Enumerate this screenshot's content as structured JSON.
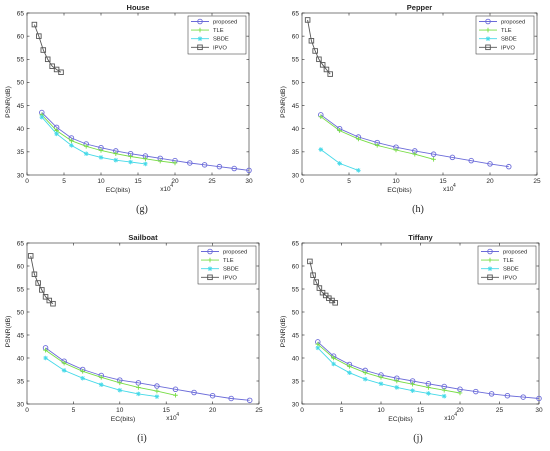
{
  "colors": {
    "proposed": "#6b6bd9",
    "TLE": "#77dd44",
    "SBDE": "#44d9e8",
    "IPVO": "#555555"
  },
  "chart_data": [
    {
      "type": "line",
      "title": "House",
      "caption": "(g)",
      "xlabel": "EC(bits)",
      "ylabel": "PSNR(dB)",
      "x_multiplier": "x10",
      "x_multiplier_exp": "4",
      "xlim": [
        0,
        30
      ],
      "ylim": [
        30,
        65
      ],
      "xticks": [
        0,
        5,
        10,
        15,
        20,
        25,
        30
      ],
      "yticks": [
        30,
        35,
        40,
        45,
        50,
        55,
        60,
        65
      ],
      "legend": "top-right",
      "series": [
        {
          "name": "proposed",
          "marker": "circle",
          "x": [
            2,
            4,
            6,
            8,
            10,
            12,
            14,
            16,
            18,
            20,
            22,
            24,
            26,
            28,
            30
          ],
          "y": [
            43.5,
            40.3,
            38.0,
            36.7,
            35.9,
            35.2,
            34.6,
            34.1,
            33.6,
            33.1,
            32.6,
            32.2,
            31.8,
            31.4,
            31.0
          ]
        },
        {
          "name": "TLE",
          "marker": "plus",
          "x": [
            2,
            4,
            6,
            8,
            10,
            12,
            14,
            16,
            18,
            20
          ],
          "y": [
            43.0,
            39.6,
            37.4,
            36.2,
            35.3,
            34.6,
            34.0,
            33.5,
            33.0,
            32.6
          ]
        },
        {
          "name": "SBDE",
          "marker": "asterisk",
          "x": [
            2,
            4,
            6,
            8,
            10,
            12,
            14,
            16
          ],
          "y": [
            42.5,
            38.9,
            36.4,
            34.6,
            33.8,
            33.2,
            32.8,
            32.4
          ]
        },
        {
          "name": "IPVO",
          "marker": "square",
          "x": [
            1.0,
            1.6,
            2.2,
            2.8,
            3.4,
            4.0,
            4.6
          ],
          "y": [
            62.5,
            60.0,
            57.0,
            55.0,
            53.5,
            52.8,
            52.2
          ]
        }
      ]
    },
    {
      "type": "line",
      "title": "Pepper",
      "caption": "(h)",
      "xlabel": "EC(bits)",
      "ylabel": "PSNR(dB)",
      "x_multiplier": "x10",
      "x_multiplier_exp": "4",
      "xlim": [
        0,
        25
      ],
      "ylim": [
        30,
        65
      ],
      "xticks": [
        0,
        5,
        10,
        15,
        20,
        25
      ],
      "yticks": [
        30,
        35,
        40,
        45,
        50,
        55,
        60,
        65
      ],
      "legend": "top-right",
      "series": [
        {
          "name": "proposed",
          "marker": "circle",
          "x": [
            2,
            4,
            6,
            8,
            10,
            12,
            14,
            16,
            18,
            20,
            22
          ],
          "y": [
            43.0,
            40.0,
            38.2,
            37.0,
            36.0,
            35.2,
            34.5,
            33.8,
            33.1,
            32.4,
            31.8
          ]
        },
        {
          "name": "TLE",
          "marker": "plus",
          "x": [
            2,
            4,
            6,
            8,
            10,
            12,
            14
          ],
          "y": [
            42.6,
            39.6,
            37.8,
            36.4,
            35.4,
            34.5,
            33.4
          ]
        },
        {
          "name": "SBDE",
          "marker": "asterisk",
          "x": [
            2,
            4,
            6
          ],
          "y": [
            35.5,
            32.5,
            31.0
          ]
        },
        {
          "name": "IPVO",
          "marker": "square",
          "x": [
            0.6,
            1.0,
            1.4,
            1.8,
            2.2,
            2.6,
            3.0
          ],
          "y": [
            63.5,
            59.0,
            56.8,
            55.0,
            53.8,
            52.8,
            51.8
          ]
        }
      ]
    },
    {
      "type": "line",
      "title": "Sailboat",
      "caption": "(i)",
      "xlabel": "EC(bits)",
      "ylabel": "PSNR(dB)",
      "x_multiplier": "x10",
      "x_multiplier_exp": "4",
      "xlim": [
        0,
        25
      ],
      "ylim": [
        30,
        65
      ],
      "xticks": [
        0,
        5,
        10,
        15,
        20,
        25
      ],
      "yticks": [
        30,
        35,
        40,
        45,
        50,
        55,
        60,
        65
      ],
      "legend": "top-right",
      "series": [
        {
          "name": "proposed",
          "marker": "circle",
          "x": [
            2,
            4,
            6,
            8,
            10,
            12,
            14,
            16,
            18,
            20,
            22,
            24
          ],
          "y": [
            42.2,
            39.3,
            37.5,
            36.2,
            35.2,
            34.6,
            33.9,
            33.2,
            32.5,
            31.8,
            31.2,
            30.8
          ]
        },
        {
          "name": "TLE",
          "marker": "plus",
          "x": [
            2,
            4,
            6,
            8,
            10,
            12,
            14,
            16
          ],
          "y": [
            41.7,
            38.9,
            37.1,
            35.8,
            34.6,
            33.6,
            32.8,
            31.9
          ]
        },
        {
          "name": "SBDE",
          "marker": "asterisk",
          "x": [
            2,
            4,
            6,
            8,
            10,
            12,
            14
          ],
          "y": [
            40.0,
            37.3,
            35.6,
            34.2,
            33.0,
            32.2,
            31.6
          ]
        },
        {
          "name": "IPVO",
          "marker": "square",
          "x": [
            0.4,
            0.8,
            1.2,
            1.6,
            2.0,
            2.4,
            2.8
          ],
          "y": [
            62.2,
            58.2,
            56.3,
            54.8,
            53.3,
            52.5,
            51.8
          ]
        }
      ]
    },
    {
      "type": "line",
      "title": "Tiffany",
      "caption": "(j)",
      "xlabel": "EC(bits)",
      "ylabel": "PSNR(dB)",
      "x_multiplier": "x10",
      "x_multiplier_exp": "4",
      "xlim": [
        0,
        30
      ],
      "ylim": [
        30,
        65
      ],
      "xticks": [
        0,
        5,
        10,
        15,
        20,
        25,
        30
      ],
      "yticks": [
        30,
        35,
        40,
        45,
        50,
        55,
        60,
        65
      ],
      "legend": "top-right",
      "series": [
        {
          "name": "proposed",
          "marker": "circle",
          "x": [
            2,
            4,
            6,
            8,
            10,
            12,
            14,
            16,
            18,
            20,
            22,
            24,
            26,
            28,
            30
          ],
          "y": [
            43.5,
            40.4,
            38.6,
            37.3,
            36.3,
            35.6,
            35.0,
            34.4,
            33.8,
            33.2,
            32.7,
            32.2,
            31.8,
            31.5,
            31.2
          ]
        },
        {
          "name": "TLE",
          "marker": "plus",
          "x": [
            2,
            4,
            6,
            8,
            10,
            12,
            14,
            16,
            18,
            20
          ],
          "y": [
            43.0,
            40.0,
            38.2,
            36.8,
            35.8,
            35.0,
            34.3,
            33.6,
            33.0,
            32.4
          ]
        },
        {
          "name": "SBDE",
          "marker": "asterisk",
          "x": [
            2,
            4,
            6,
            8,
            10,
            12,
            14,
            16,
            18
          ],
          "y": [
            42.2,
            38.7,
            36.8,
            35.4,
            34.4,
            33.6,
            32.9,
            32.3,
            31.7
          ]
        },
        {
          "name": "IPVO",
          "marker": "square",
          "x": [
            1.0,
            1.4,
            1.8,
            2.2,
            2.6,
            3.0,
            3.4,
            3.8,
            4.2
          ],
          "y": [
            61.0,
            58.0,
            56.5,
            55.2,
            54.2,
            53.6,
            53.0,
            52.5,
            52.0
          ]
        }
      ]
    }
  ]
}
